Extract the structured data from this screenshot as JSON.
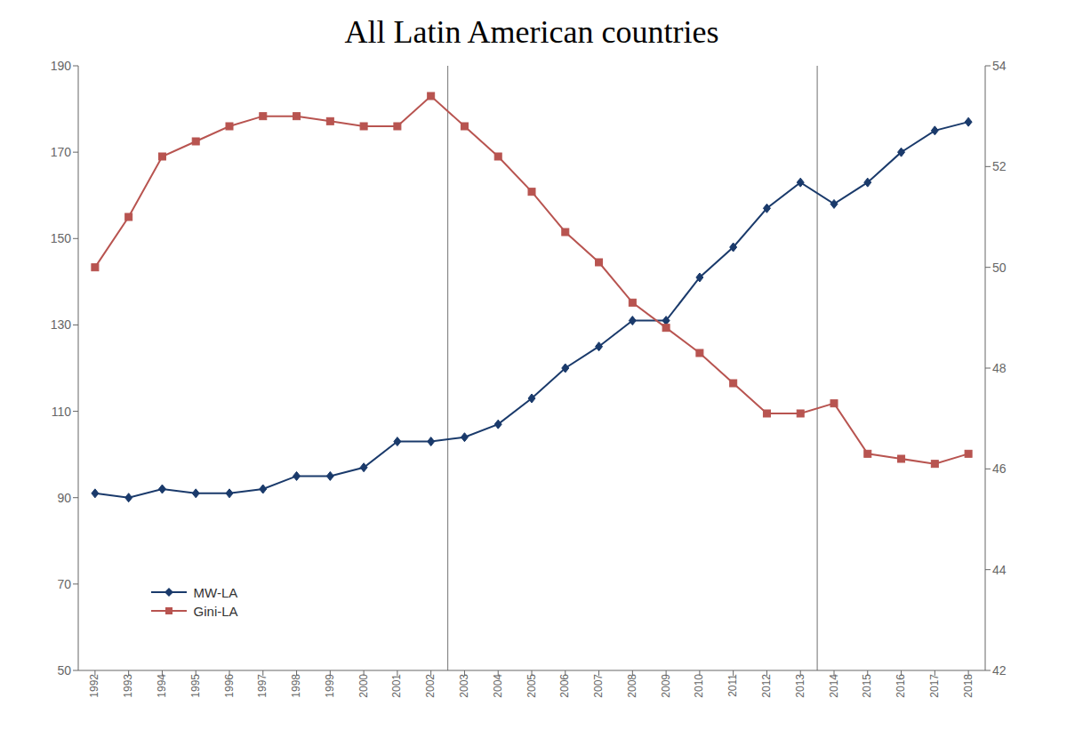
{
  "chart_data": {
    "type": "line",
    "title": "All Latin American countries",
    "x": [
      1992,
      1993,
      1994,
      1995,
      1996,
      1997,
      1998,
      1999,
      2000,
      2001,
      2002,
      2003,
      2004,
      2005,
      2006,
      2007,
      2008,
      2009,
      2010,
      2011,
      2012,
      2013,
      2014,
      2015,
      2016,
      2017,
      2018
    ],
    "series": [
      {
        "name": "MW-LA",
        "color": "#1a3a6b",
        "marker": "diamond",
        "line_style": "solid",
        "values": [
          91,
          90,
          92,
          91,
          91,
          92,
          95,
          95,
          97,
          103,
          103,
          104,
          107,
          113,
          120,
          125,
          131,
          131,
          141,
          148,
          157,
          163,
          158,
          163,
          170,
          175,
          177
        ]
      },
      {
        "name": "Gini-LA",
        "color": "#b85450",
        "marker": "square",
        "line_style": "solid",
        "axis": "y2",
        "values": [
          50.0,
          51.0,
          52.2,
          52.5,
          52.8,
          53.0,
          53.0,
          52.9,
          52.8,
          52.8,
          53.4,
          52.8,
          52.2,
          51.5,
          50.7,
          50.1,
          49.3,
          48.8,
          48.3,
          47.7,
          47.1,
          47.1,
          47.3,
          46.3,
          46.2,
          46.1,
          46.3
        ]
      }
    ],
    "xlim": [
      1991.5,
      2018.5
    ],
    "xticks": [
      1992,
      1993,
      1994,
      1995,
      1996,
      1997,
      1998,
      1999,
      2000,
      2001,
      2002,
      2003,
      2004,
      2005,
      2006,
      2007,
      2008,
      2009,
      2010,
      2011,
      2012,
      2013,
      2014,
      2015,
      2016,
      2017,
      2018
    ],
    "ylim": [
      50,
      190
    ],
    "yticks": [
      50,
      70,
      90,
      110,
      130,
      150,
      170,
      190
    ],
    "y2lim": [
      42,
      54
    ],
    "y2ticks": [
      42,
      44,
      46,
      48,
      50,
      52,
      54
    ],
    "vlines": [
      2002.5,
      2013.5
    ],
    "legend": "lower left",
    "grid": false
  }
}
